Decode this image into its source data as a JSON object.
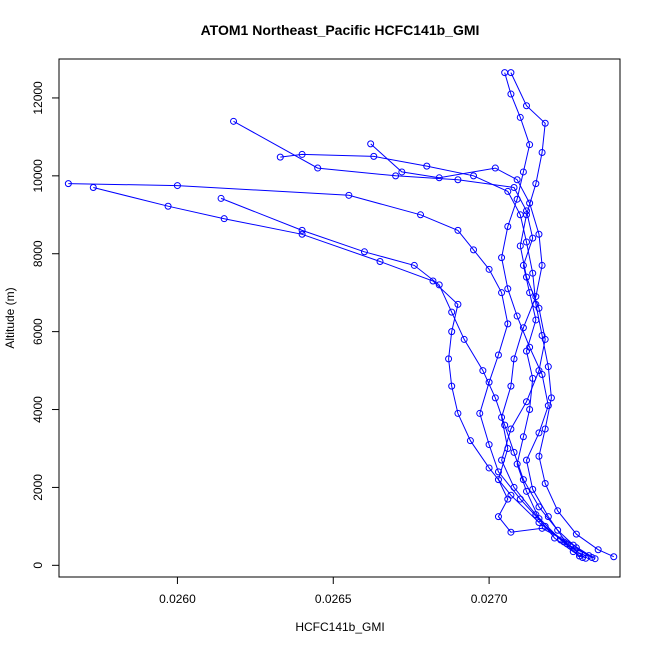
{
  "chart_data": {
    "type": "line",
    "title": "ATOM1 Northeast_Pacific HCFC141b_GMI",
    "xlabel": "HCFC141b_GMI",
    "ylabel": "Altitude (m)",
    "xlim": [
      0.02562,
      0.02742
    ],
    "ylim": [
      -300,
      13000
    ],
    "x_ticks": [
      0.026,
      0.0265,
      0.027
    ],
    "x_tick_labels": [
      "0.0260",
      "0.0265",
      "0.0270"
    ],
    "y_ticks": [
      0,
      2000,
      4000,
      6000,
      8000,
      10000,
      12000
    ],
    "y_tick_labels": [
      "0",
      "2000",
      "4000",
      "6000",
      "8000",
      "10000",
      "12000"
    ],
    "grid": false,
    "marker": "open-circle",
    "color": "#0000ff",
    "series": [
      {
        "points": [
          {
            "x": 0.0273,
            "y": 200
          },
          {
            "x": 0.02727,
            "y": 350
          },
          {
            "x": 0.02721,
            "y": 700
          },
          {
            "x": 0.02716,
            "y": 1200
          },
          {
            "x": 0.02712,
            "y": 1900
          },
          {
            "x": 0.02709,
            "y": 2600
          },
          {
            "x": 0.02711,
            "y": 3300
          },
          {
            "x": 0.02713,
            "y": 4000
          },
          {
            "x": 0.02714,
            "y": 4800
          },
          {
            "x": 0.02712,
            "y": 5500
          },
          {
            "x": 0.02715,
            "y": 6300
          },
          {
            "x": 0.02713,
            "y": 7000
          },
          {
            "x": 0.02711,
            "y": 7700
          },
          {
            "x": 0.02714,
            "y": 8400
          },
          {
            "x": 0.02712,
            "y": 9100
          },
          {
            "x": 0.02708,
            "y": 9700
          },
          {
            "x": 0.0269,
            "y": 9900
          },
          {
            "x": 0.0267,
            "y": 10000
          },
          {
            "x": 0.02645,
            "y": 10200
          },
          {
            "x": 0.02618,
            "y": 11400
          }
        ]
      },
      {
        "points": [
          {
            "x": 0.02732,
            "y": 250
          },
          {
            "x": 0.02726,
            "y": 500
          },
          {
            "x": 0.02718,
            "y": 1000
          },
          {
            "x": 0.0271,
            "y": 1700
          },
          {
            "x": 0.02703,
            "y": 2400
          },
          {
            "x": 0.027,
            "y": 3100
          },
          {
            "x": 0.02697,
            "y": 3900
          },
          {
            "x": 0.027,
            "y": 4700
          },
          {
            "x": 0.02703,
            "y": 5400
          },
          {
            "x": 0.02706,
            "y": 6200
          },
          {
            "x": 0.02704,
            "y": 7000
          },
          {
            "x": 0.027,
            "y": 7600
          },
          {
            "x": 0.02695,
            "y": 8100
          },
          {
            "x": 0.0269,
            "y": 8600
          },
          {
            "x": 0.02678,
            "y": 9000
          },
          {
            "x": 0.02655,
            "y": 9500
          },
          {
            "x": 0.026,
            "y": 9750
          },
          {
            "x": 0.02565,
            "y": 9800
          }
        ]
      },
      {
        "points": [
          {
            "x": 0.02729,
            "y": 300
          },
          {
            "x": 0.02724,
            "y": 600
          },
          {
            "x": 0.02716,
            "y": 1100
          },
          {
            "x": 0.02707,
            "y": 1800
          },
          {
            "x": 0.027,
            "y": 2500
          },
          {
            "x": 0.02694,
            "y": 3200
          },
          {
            "x": 0.0269,
            "y": 3900
          },
          {
            "x": 0.02688,
            "y": 4600
          },
          {
            "x": 0.02687,
            "y": 5300
          },
          {
            "x": 0.02688,
            "y": 6000
          },
          {
            "x": 0.0269,
            "y": 6700
          },
          {
            "x": 0.02682,
            "y": 7300
          },
          {
            "x": 0.02665,
            "y": 7800
          },
          {
            "x": 0.0264,
            "y": 8500
          },
          {
            "x": 0.02615,
            "y": 8900
          },
          {
            "x": 0.02597,
            "y": 9220
          },
          {
            "x": 0.02573,
            "y": 9700
          }
        ]
      },
      {
        "points": [
          {
            "x": 0.02733,
            "y": 200
          },
          {
            "x": 0.02728,
            "y": 450
          },
          {
            "x": 0.02722,
            "y": 900
          },
          {
            "x": 0.02716,
            "y": 1500
          },
          {
            "x": 0.02711,
            "y": 2200
          },
          {
            "x": 0.02708,
            "y": 2900
          },
          {
            "x": 0.02705,
            "y": 3600
          },
          {
            "x": 0.02702,
            "y": 4300
          },
          {
            "x": 0.02698,
            "y": 5000
          },
          {
            "x": 0.02692,
            "y": 5800
          },
          {
            "x": 0.02688,
            "y": 6500
          },
          {
            "x": 0.02684,
            "y": 7200
          },
          {
            "x": 0.02676,
            "y": 7700
          },
          {
            "x": 0.0266,
            "y": 8050
          },
          {
            "x": 0.0264,
            "y": 8600
          },
          {
            "x": 0.02614,
            "y": 9420
          }
        ]
      },
      {
        "points": [
          {
            "x": 0.0274,
            "y": 220
          },
          {
            "x": 0.02735,
            "y": 400
          },
          {
            "x": 0.02728,
            "y": 800
          },
          {
            "x": 0.02722,
            "y": 1400
          },
          {
            "x": 0.02718,
            "y": 2100
          },
          {
            "x": 0.02716,
            "y": 2800
          },
          {
            "x": 0.02718,
            "y": 3500
          },
          {
            "x": 0.0272,
            "y": 4300
          },
          {
            "x": 0.02719,
            "y": 5100
          },
          {
            "x": 0.02717,
            "y": 5900
          },
          {
            "x": 0.02715,
            "y": 6700
          },
          {
            "x": 0.02714,
            "y": 7500
          },
          {
            "x": 0.02712,
            "y": 8300
          },
          {
            "x": 0.0271,
            "y": 9000
          },
          {
            "x": 0.02706,
            "y": 9600
          },
          {
            "x": 0.02695,
            "y": 10000
          },
          {
            "x": 0.0268,
            "y": 10250
          },
          {
            "x": 0.02663,
            "y": 10500
          },
          {
            "x": 0.0264,
            "y": 10550
          },
          {
            "x": 0.02633,
            "y": 10480
          }
        ]
      },
      {
        "points": [
          {
            "x": 0.02731,
            "y": 180
          },
          {
            "x": 0.02725,
            "y": 550
          },
          {
            "x": 0.02719,
            "y": 1250
          },
          {
            "x": 0.02714,
            "y": 1950
          },
          {
            "x": 0.02712,
            "y": 2700
          },
          {
            "x": 0.02716,
            "y": 3400
          },
          {
            "x": 0.02719,
            "y": 4100
          },
          {
            "x": 0.02717,
            "y": 4900
          },
          {
            "x": 0.02713,
            "y": 5600
          },
          {
            "x": 0.02709,
            "y": 6400
          },
          {
            "x": 0.02706,
            "y": 7100
          },
          {
            "x": 0.02704,
            "y": 7900
          },
          {
            "x": 0.02706,
            "y": 8700
          },
          {
            "x": 0.02709,
            "y": 9400
          },
          {
            "x": 0.02711,
            "y": 10100
          },
          {
            "x": 0.02713,
            "y": 10800
          },
          {
            "x": 0.0271,
            "y": 11500
          },
          {
            "x": 0.02707,
            "y": 12100
          },
          {
            "x": 0.02705,
            "y": 12650
          }
        ]
      },
      {
        "points": [
          {
            "x": 0.02729,
            "y": 240
          },
          {
            "x": 0.02723,
            "y": 650
          },
          {
            "x": 0.02715,
            "y": 1300
          },
          {
            "x": 0.02708,
            "y": 2000
          },
          {
            "x": 0.02704,
            "y": 2700
          },
          {
            "x": 0.02707,
            "y": 3500
          },
          {
            "x": 0.02712,
            "y": 4200
          },
          {
            "x": 0.02716,
            "y": 5000
          },
          {
            "x": 0.02718,
            "y": 5800
          },
          {
            "x": 0.02716,
            "y": 6600
          },
          {
            "x": 0.02712,
            "y": 7400
          },
          {
            "x": 0.0271,
            "y": 8200
          },
          {
            "x": 0.02712,
            "y": 9000
          },
          {
            "x": 0.02715,
            "y": 9800
          },
          {
            "x": 0.02717,
            "y": 10600
          },
          {
            "x": 0.02718,
            "y": 11350
          },
          {
            "x": 0.02712,
            "y": 11800
          },
          {
            "x": 0.02707,
            "y": 12650
          }
        ]
      },
      {
        "points": [
          {
            "x": 0.02734,
            "y": 170
          },
          {
            "x": 0.02727,
            "y": 520
          },
          {
            "x": 0.02717,
            "y": 950
          },
          {
            "x": 0.02707,
            "y": 850
          },
          {
            "x": 0.02703,
            "y": 1250
          },
          {
            "x": 0.02706,
            "y": 1700
          },
          {
            "x": 0.02703,
            "y": 2200
          },
          {
            "x": 0.02706,
            "y": 3000
          },
          {
            "x": 0.02704,
            "y": 3800
          },
          {
            "x": 0.02707,
            "y": 4600
          },
          {
            "x": 0.02708,
            "y": 5300
          },
          {
            "x": 0.02711,
            "y": 6100
          },
          {
            "x": 0.02715,
            "y": 6900
          },
          {
            "x": 0.02717,
            "y": 7700
          },
          {
            "x": 0.02716,
            "y": 8500
          },
          {
            "x": 0.02713,
            "y": 9300
          },
          {
            "x": 0.02709,
            "y": 9900
          },
          {
            "x": 0.02702,
            "y": 10200
          },
          {
            "x": 0.02684,
            "y": 9950
          },
          {
            "x": 0.02672,
            "y": 10100
          },
          {
            "x": 0.02662,
            "y": 10820
          }
        ]
      }
    ]
  }
}
